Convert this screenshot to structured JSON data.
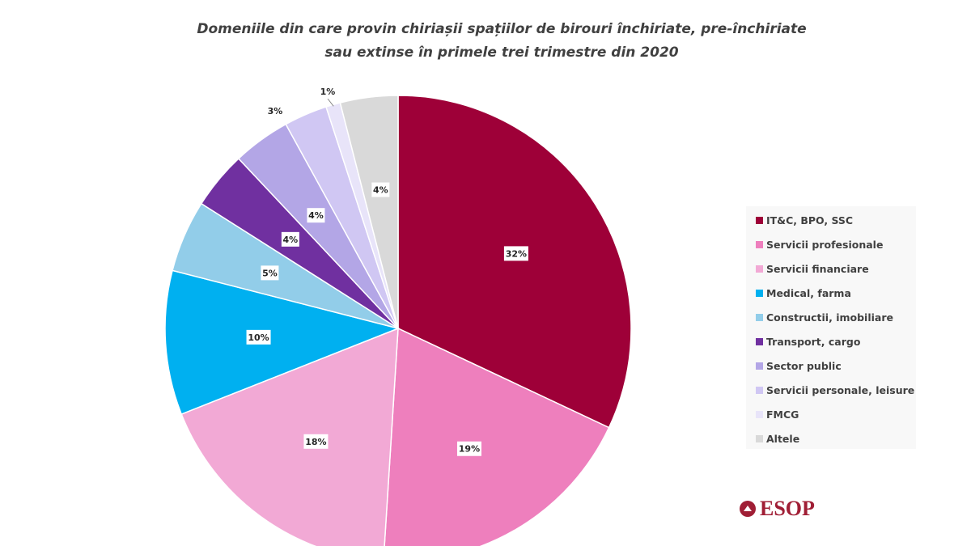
{
  "chart_data": {
    "type": "pie",
    "title": "Domeniile din care provin chiriașii spațiilor de birouri închiriate, pre-închiriate sau extinse în primele trei trimestre din 2020",
    "title_lines": [
      "Domeniile din care provin chiriașii spațiilor de birouri închiriate, pre-închiriate",
      "sau extinse în primele trei trimestre din 2020"
    ],
    "legend_position": "right",
    "start": "top, clockwise",
    "slices": [
      {
        "label": "IT&C, BPO, SSC",
        "value": 32,
        "data_label": "32%",
        "color": "#9e0038"
      },
      {
        "label": "Servicii profesionale",
        "value": 19,
        "data_label": "19%",
        "color": "#ee7fbd"
      },
      {
        "label": "Servicii financiare",
        "value": 18,
        "data_label": "18%",
        "color": "#f2a9d5"
      },
      {
        "label": "Medical, farma",
        "value": 10,
        "data_label": "10%",
        "color": "#00b0f0"
      },
      {
        "label": "Constructii, imobiliare",
        "value": 5,
        "data_label": "5%",
        "color": "#92cde9"
      },
      {
        "label": "Transport, cargo",
        "value": 4,
        "data_label": "4%",
        "color": "#7030a0"
      },
      {
        "label": "Sector public",
        "value": 4,
        "data_label": "4%",
        "color": "#b3a6e6"
      },
      {
        "label": "Servicii personale, leisure",
        "value": 3,
        "data_label": "3%",
        "color": "#d0c7f3"
      },
      {
        "label": "FMCG",
        "value": 1,
        "data_label": "1%",
        "color": "#e8e4f9"
      },
      {
        "label": "Altele",
        "value": 4,
        "data_label": "4%",
        "color": "#d9d9d9"
      }
    ]
  },
  "logo": {
    "text": "ESOP",
    "color": "#a01e35"
  }
}
